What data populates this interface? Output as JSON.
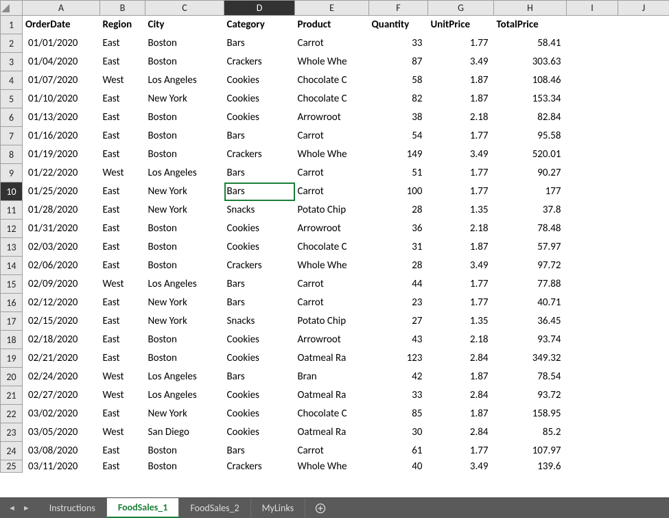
{
  "columns": [
    "A",
    "B",
    "C",
    "D",
    "E",
    "F",
    "G",
    "H",
    "I",
    "J"
  ],
  "activeColumn": "D",
  "activeRow": 10,
  "selectedCell": {
    "row": 10,
    "col": "D"
  },
  "headers": {
    "A": "OrderDate",
    "B": "Region",
    "C": "City",
    "D": "Category",
    "E": "Product",
    "F": "Quantity",
    "G": "UnitPrice",
    "H": "TotalPrice"
  },
  "numericCols": [
    "F",
    "G",
    "H"
  ],
  "rows": [
    {
      "n": 2,
      "A": "01/01/2020",
      "B": "East",
      "C": "Boston",
      "D": "Bars",
      "E": "Carrot",
      "F": "33",
      "G": "1.77",
      "H": "58.41"
    },
    {
      "n": 3,
      "A": "01/04/2020",
      "B": "East",
      "C": "Boston",
      "D": "Crackers",
      "E": "Whole Whe",
      "F": "87",
      "G": "3.49",
      "H": "303.63"
    },
    {
      "n": 4,
      "A": "01/07/2020",
      "B": "West",
      "C": "Los Angeles",
      "D": "Cookies",
      "E": "Chocolate C",
      "F": "58",
      "G": "1.87",
      "H": "108.46"
    },
    {
      "n": 5,
      "A": "01/10/2020",
      "B": "East",
      "C": "New York",
      "D": "Cookies",
      "E": "Chocolate C",
      "F": "82",
      "G": "1.87",
      "H": "153.34"
    },
    {
      "n": 6,
      "A": "01/13/2020",
      "B": "East",
      "C": "Boston",
      "D": "Cookies",
      "E": "Arrowroot",
      "F": "38",
      "G": "2.18",
      "H": "82.84"
    },
    {
      "n": 7,
      "A": "01/16/2020",
      "B": "East",
      "C": "Boston",
      "D": "Bars",
      "E": "Carrot",
      "F": "54",
      "G": "1.77",
      "H": "95.58"
    },
    {
      "n": 8,
      "A": "01/19/2020",
      "B": "East",
      "C": "Boston",
      "D": "Crackers",
      "E": "Whole Whe",
      "F": "149",
      "G": "3.49",
      "H": "520.01"
    },
    {
      "n": 9,
      "A": "01/22/2020",
      "B": "West",
      "C": "Los Angeles",
      "D": "Bars",
      "E": "Carrot",
      "F": "51",
      "G": "1.77",
      "H": "90.27"
    },
    {
      "n": 10,
      "A": "01/25/2020",
      "B": "East",
      "C": "New York",
      "D": "Bars",
      "E": "Carrot",
      "F": "100",
      "G": "1.77",
      "H": "177"
    },
    {
      "n": 11,
      "A": "01/28/2020",
      "B": "East",
      "C": "New York",
      "D": "Snacks",
      "E": "Potato Chip",
      "F": "28",
      "G": "1.35",
      "H": "37.8"
    },
    {
      "n": 12,
      "A": "01/31/2020",
      "B": "East",
      "C": "Boston",
      "D": "Cookies",
      "E": "Arrowroot",
      "F": "36",
      "G": "2.18",
      "H": "78.48"
    },
    {
      "n": 13,
      "A": "02/03/2020",
      "B": "East",
      "C": "Boston",
      "D": "Cookies",
      "E": "Chocolate C",
      "F": "31",
      "G": "1.87",
      "H": "57.97"
    },
    {
      "n": 14,
      "A": "02/06/2020",
      "B": "East",
      "C": "Boston",
      "D": "Crackers",
      "E": "Whole Whe",
      "F": "28",
      "G": "3.49",
      "H": "97.72"
    },
    {
      "n": 15,
      "A": "02/09/2020",
      "B": "West",
      "C": "Los Angeles",
      "D": "Bars",
      "E": "Carrot",
      "F": "44",
      "G": "1.77",
      "H": "77.88"
    },
    {
      "n": 16,
      "A": "02/12/2020",
      "B": "East",
      "C": "New York",
      "D": "Bars",
      "E": "Carrot",
      "F": "23",
      "G": "1.77",
      "H": "40.71"
    },
    {
      "n": 17,
      "A": "02/15/2020",
      "B": "East",
      "C": "New York",
      "D": "Snacks",
      "E": "Potato Chip",
      "F": "27",
      "G": "1.35",
      "H": "36.45"
    },
    {
      "n": 18,
      "A": "02/18/2020",
      "B": "East",
      "C": "Boston",
      "D": "Cookies",
      "E": "Arrowroot",
      "F": "43",
      "G": "2.18",
      "H": "93.74"
    },
    {
      "n": 19,
      "A": "02/21/2020",
      "B": "East",
      "C": "Boston",
      "D": "Cookies",
      "E": "Oatmeal Ra",
      "F": "123",
      "G": "2.84",
      "H": "349.32"
    },
    {
      "n": 20,
      "A": "02/24/2020",
      "B": "West",
      "C": "Los Angeles",
      "D": "Bars",
      "E": "Bran",
      "F": "42",
      "G": "1.87",
      "H": "78.54"
    },
    {
      "n": 21,
      "A": "02/27/2020",
      "B": "West",
      "C": "Los Angeles",
      "D": "Cookies",
      "E": "Oatmeal Ra",
      "F": "33",
      "G": "2.84",
      "H": "93.72"
    },
    {
      "n": 22,
      "A": "03/02/2020",
      "B": "East",
      "C": "New York",
      "D": "Cookies",
      "E": "Chocolate C",
      "F": "85",
      "G": "1.87",
      "H": "158.95"
    },
    {
      "n": 23,
      "A": "03/05/2020",
      "B": "West",
      "C": "San Diego",
      "D": "Cookies",
      "E": "Oatmeal Ra",
      "F": "30",
      "G": "2.84",
      "H": "85.2"
    },
    {
      "n": 24,
      "A": "03/08/2020",
      "B": "East",
      "C": "Boston",
      "D": "Bars",
      "E": "Carrot",
      "F": "61",
      "G": "1.77",
      "H": "107.97"
    },
    {
      "n": 25,
      "A": "03/11/2020",
      "B": "East",
      "C": "Boston",
      "D": "Crackers",
      "E": "Whole Whe",
      "F": "40",
      "G": "3.49",
      "H": "139.6",
      "partial": true
    }
  ],
  "tabs": {
    "items": [
      "Instructions",
      "FoodSales_1",
      "FoodSales_2",
      "MyLinks"
    ],
    "active": "FoodSales_1"
  }
}
